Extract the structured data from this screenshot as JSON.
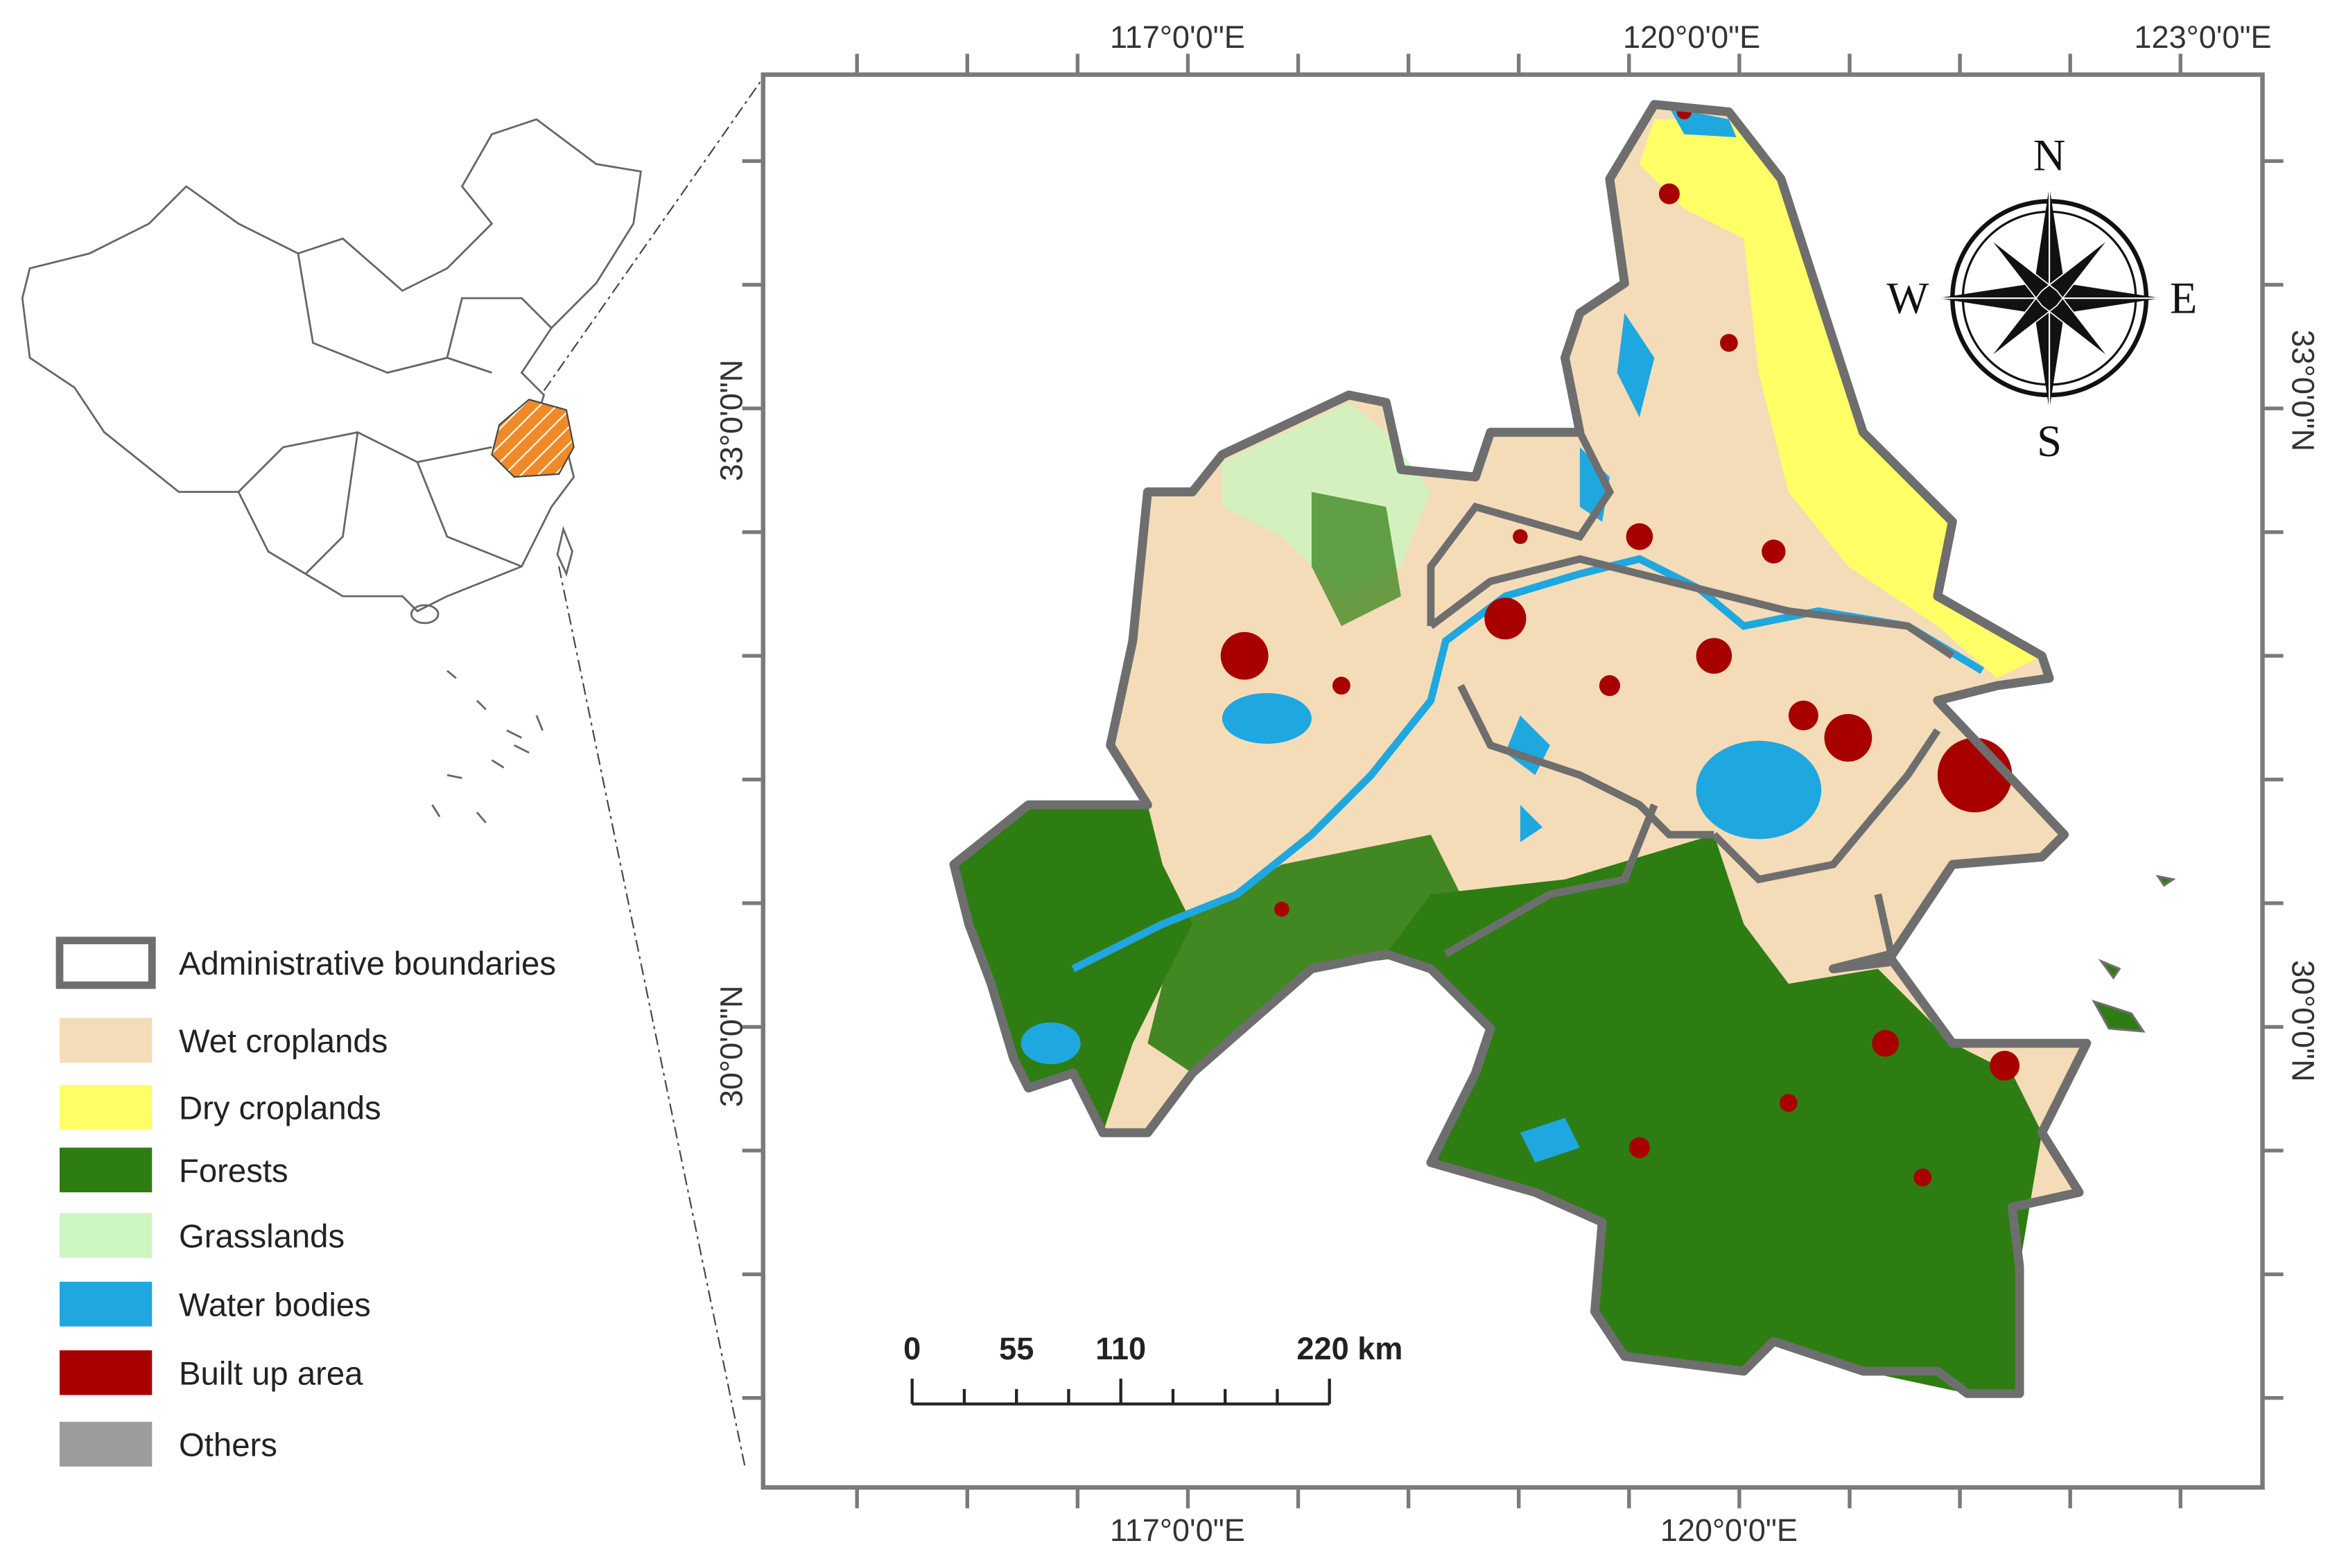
{
  "map": {
    "longitude_labels_top": [
      "117°0'0\"E",
      "120°0'0\"E",
      "123°0'0\"E"
    ],
    "longitude_labels_bottom": [
      "117°0'0\"E",
      "120°0'0\"E"
    ],
    "latitude_labels_left": [
      "33°0'0\"N",
      "30°0'0\"N"
    ],
    "latitude_labels_right": [
      "33°0'0\"N",
      "30°0'0\"N"
    ],
    "compass": {
      "north": "N",
      "west": "W",
      "east": "E",
      "south": "S"
    },
    "scale_bar": {
      "labels": [
        "0",
        "55",
        "110",
        "220 km"
      ]
    },
    "legend": [
      {
        "label": "Administrative boundaries",
        "outline": "#6e6e6e"
      },
      {
        "label": "Wet croplands",
        "color": "#f5dcb8"
      },
      {
        "label": "Dry croplands",
        "color": "#ffff66"
      },
      {
        "label": "Forests",
        "color": "#2e7d12"
      },
      {
        "label": "Grasslands",
        "color": "#ccf5c0"
      },
      {
        "label": "Water bodies",
        "color": "#1fa7e0"
      },
      {
        "label": "Built up area",
        "color": "#a80000"
      },
      {
        "label": "Others",
        "color": "#9c9c9c"
      }
    ]
  }
}
